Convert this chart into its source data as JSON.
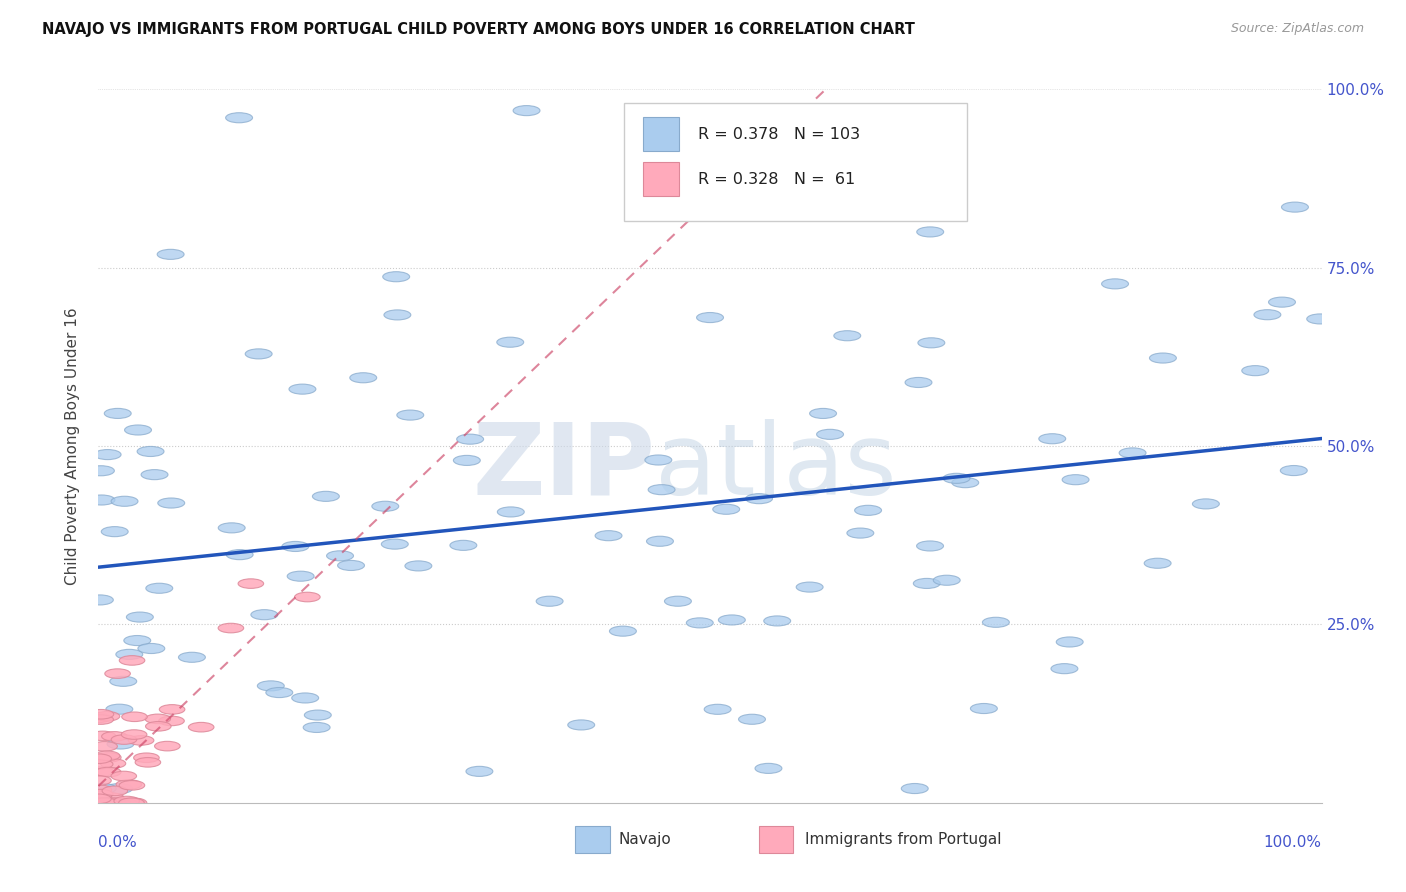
{
  "title": "NAVAJO VS IMMIGRANTS FROM PORTUGAL CHILD POVERTY AMONG BOYS UNDER 16 CORRELATION CHART",
  "source": "Source: ZipAtlas.com",
  "ylabel": "Child Poverty Among Boys Under 16",
  "navajo_R": 0.378,
  "navajo_N": 103,
  "portugal_R": 0.328,
  "portugal_N": 61,
  "navajo_fill": "#aaccee",
  "navajo_edge": "#88aacc",
  "portugal_fill": "#ffaabb",
  "portugal_edge": "#dd8899",
  "trend_navajo": "#2255bb",
  "trend_portugal": "#cc4466",
  "bg": "#ffffff",
  "grid_col": "#cccccc",
  "tick_col": "#4455cc",
  "legend_edge": "#cccccc",
  "title_color": "#111111",
  "source_color": "#999999",
  "ylabel_color": "#444444",
  "legend_text_color": "#222222",
  "bottom_legend_text": "#333333"
}
